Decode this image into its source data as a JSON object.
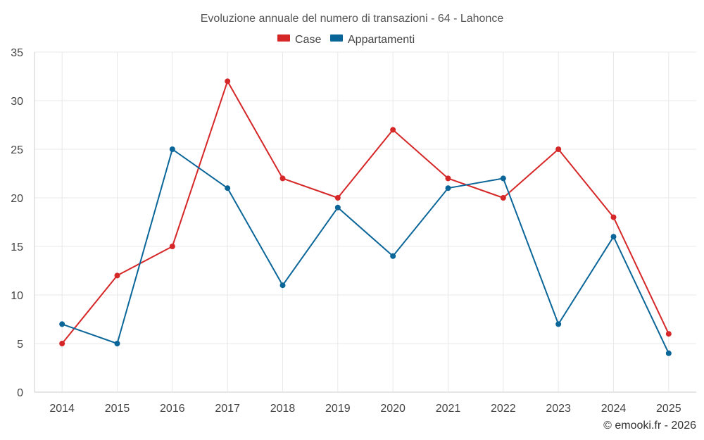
{
  "chart_data": {
    "type": "line",
    "title": "Evoluzione annuale del numero di transazioni - 64 - Lahonce",
    "categories": [
      "2014",
      "2015",
      "2016",
      "2017",
      "2018",
      "2019",
      "2020",
      "2021",
      "2022",
      "2023",
      "2024",
      "2025"
    ],
    "series": [
      {
        "name": "Case",
        "color": "#d62728",
        "values": [
          5,
          12,
          15,
          32,
          22,
          20,
          27,
          22,
          20,
          25,
          18,
          6
        ]
      },
      {
        "name": "Appartamenti",
        "color": "#0a6699",
        "values": [
          7,
          5,
          25,
          21,
          11,
          19,
          14,
          21,
          22,
          7,
          16,
          4
        ]
      }
    ],
    "yticks": [
      0,
      5,
      10,
      15,
      20,
      25,
      30,
      35
    ],
    "ylim": [
      0,
      35
    ],
    "xlabel": "",
    "ylabel": "",
    "legend": "top-center",
    "grid": true
  },
  "credit": "© emooki.fr - 2026"
}
